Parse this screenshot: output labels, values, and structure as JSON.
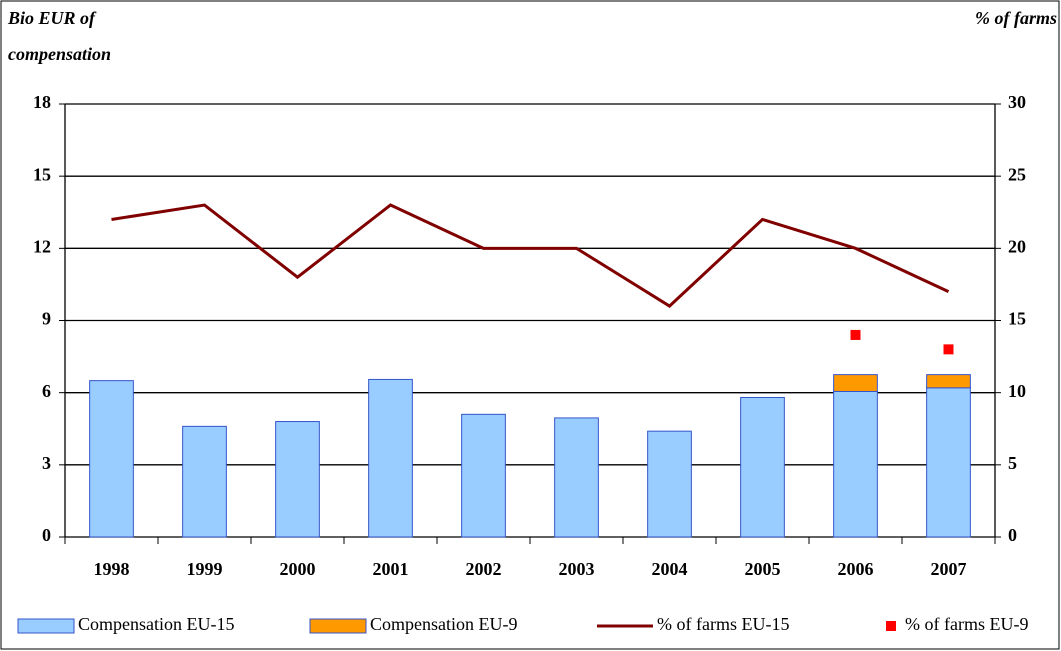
{
  "chart_data": {
    "type": "bar",
    "y_label": [
      "Bio EUR of",
      "compensation"
    ],
    "y2_label": "% of farms",
    "categories": [
      "1998",
      "1999",
      "2000",
      "2001",
      "2002",
      "2003",
      "2004",
      "2005",
      "2006",
      "2007"
    ],
    "series": [
      {
        "name": "Compensation EU-15",
        "type": "bar",
        "stack": "a",
        "color": "#99ccff",
        "values": [
          6.5,
          4.6,
          4.8,
          6.55,
          5.1,
          4.95,
          4.4,
          5.8,
          6.05,
          6.2
        ]
      },
      {
        "name": "Compensation EU-9",
        "type": "bar",
        "stack": "a",
        "color": "#ff9900",
        "values": [
          null,
          null,
          null,
          null,
          null,
          null,
          null,
          null,
          0.7,
          0.55
        ]
      },
      {
        "name": "% of farms EU-15",
        "type": "line",
        "axis": "y2",
        "color": "#800000",
        "values": [
          22,
          23,
          18,
          23,
          20,
          20,
          16,
          22,
          20,
          17
        ]
      },
      {
        "name": "% of farms EU-9",
        "type": "scatter",
        "axis": "y2",
        "color": "#ff0000",
        "values": [
          null,
          null,
          null,
          null,
          null,
          null,
          null,
          null,
          14,
          13
        ]
      }
    ],
    "ylim": [
      0,
      18
    ],
    "yticks": [
      0,
      3,
      6,
      9,
      12,
      15,
      18
    ],
    "y2lim": [
      0,
      30
    ],
    "y2ticks": [
      0,
      5,
      10,
      15,
      20,
      25,
      30
    ],
    "grid": true,
    "legend": "bottom"
  }
}
